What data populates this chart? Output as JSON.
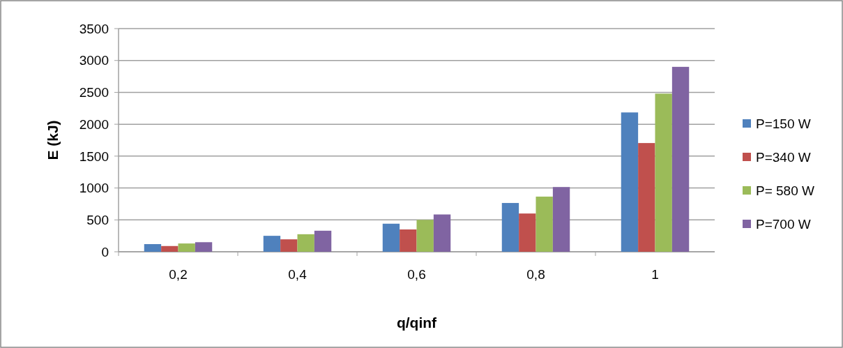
{
  "chart_data": {
    "type": "bar",
    "xlabel": "q/qinf",
    "ylabel": "E (kJ)",
    "categories": [
      "0,2",
      "0,4",
      "0,6",
      "0,8",
      "1"
    ],
    "series": [
      {
        "name": "P=150 W",
        "color": "#4f81bd",
        "values": [
          120,
          250,
          440,
          765,
          2185
        ]
      },
      {
        "name": "P=340 W",
        "color": "#c0504d",
        "values": [
          90,
          195,
          350,
          600,
          1705
        ]
      },
      {
        "name": "P= 580 W",
        "color": "#9bbb59",
        "values": [
          130,
          275,
          500,
          865,
          2480
        ]
      },
      {
        "name": "P=700 W",
        "color": "#8064a2",
        "values": [
          150,
          330,
          585,
          1015,
          2900
        ]
      }
    ],
    "ylim": [
      0,
      3500
    ],
    "yticks": [
      0,
      500,
      1000,
      1500,
      2000,
      2500,
      3000,
      3500
    ],
    "grid": "y",
    "legend": "right"
  }
}
